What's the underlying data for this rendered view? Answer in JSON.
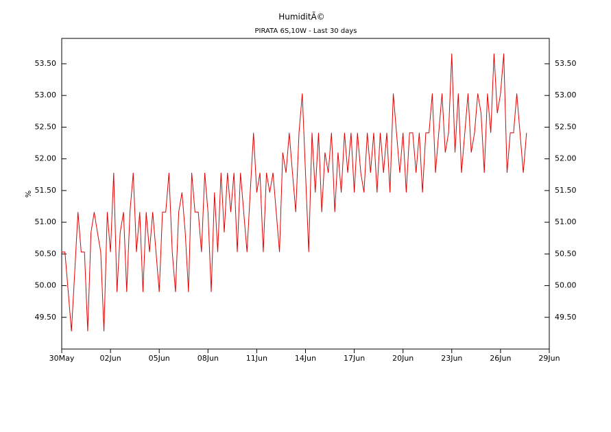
{
  "chart_data": {
    "type": "line",
    "title": "HumiditÃ©",
    "subtitle": "PIRATA 6S,10W - Last 30 days",
    "y_label": "%",
    "xlim": [
      0,
      30
    ],
    "xticks": [
      {
        "value": 0,
        "label": "30May"
      },
      {
        "value": 3,
        "label": "02Jun"
      },
      {
        "value": 6,
        "label": "05Jun"
      },
      {
        "value": 9,
        "label": "08Jun"
      },
      {
        "value": 12,
        "label": "11Jun"
      },
      {
        "value": 15,
        "label": "14Jun"
      },
      {
        "value": 18,
        "label": "17Jun"
      },
      {
        "value": 21,
        "label": "20Jun"
      },
      {
        "value": 24,
        "label": "23Jun"
      },
      {
        "value": 27,
        "label": "26Jun"
      },
      {
        "value": 30,
        "label": "29Jun"
      }
    ],
    "ylim": [
      49.0,
      53.9
    ],
    "yticks": [
      {
        "value": 49.5,
        "label": "49.50"
      },
      {
        "value": 50,
        "label": "50.00"
      },
      {
        "value": 50.5,
        "label": "50.50"
      },
      {
        "value": 51,
        "label": "51.00"
      },
      {
        "value": 51.5,
        "label": "51.50"
      },
      {
        "value": 52,
        "label": "52.00"
      },
      {
        "value": 52.5,
        "label": "52.50"
      },
      {
        "value": 53,
        "label": "53.00"
      },
      {
        "value": 53.5,
        "label": "53.50"
      }
    ],
    "series": [
      {
        "color": "#e00000",
        "x": [
          0,
          0.2,
          0.4,
          0.6,
          0.8,
          1,
          1.2,
          1.4,
          1.6,
          1.8,
          2,
          2.2,
          2.4,
          2.6,
          2.8,
          3,
          3.2,
          3.4,
          3.6,
          3.8,
          4,
          4.2,
          4.4,
          4.6,
          4.8,
          5,
          5.2,
          5.4,
          5.6,
          5.8,
          6,
          6.2,
          6.4,
          6.6,
          6.8,
          7,
          7.2,
          7.4,
          7.6,
          7.8,
          8,
          8.2,
          8.4,
          8.6,
          8.8,
          9,
          9.2,
          9.4,
          9.6,
          9.8,
          10,
          10.2,
          10.4,
          10.6,
          10.8,
          11,
          11.2,
          11.4,
          11.6,
          11.8,
          12,
          12.2,
          12.4,
          12.6,
          12.8,
          13,
          13.2,
          13.4,
          13.6,
          13.8,
          14,
          14.2,
          14.4,
          14.6,
          14.8,
          15,
          15.2,
          15.4,
          15.6,
          15.8,
          16,
          16.2,
          16.4,
          16.6,
          16.8,
          17,
          17.2,
          17.4,
          17.6,
          17.8,
          18,
          18.2,
          18.4,
          18.6,
          18.8,
          19,
          19.2,
          19.4,
          19.6,
          19.8,
          20,
          20.2,
          20.4,
          20.6,
          20.8,
          21,
          21.2,
          21.4,
          21.6,
          21.8,
          22,
          22.2,
          22.4,
          22.6,
          22.8,
          23,
          23.2,
          23.4,
          23.6,
          23.8,
          24,
          24.2,
          24.4,
          24.6,
          24.8,
          25,
          25.2,
          25.4,
          25.6,
          25.8,
          26,
          26.2,
          26.4,
          26.6,
          26.8,
          27,
          27.2,
          27.4,
          27.6,
          27.8,
          28,
          28.2,
          28.4,
          28.6
        ],
        "values": [
          50.53,
          50.53,
          49.9,
          49.28,
          50.22,
          51.16,
          50.53,
          50.53,
          49.28,
          50.84,
          51.16,
          50.84,
          50.53,
          49.28,
          51.16,
          50.53,
          51.78,
          49.9,
          50.84,
          51.16,
          49.9,
          51.16,
          51.78,
          50.53,
          51.16,
          49.9,
          51.16,
          50.53,
          51.16,
          50.53,
          49.9,
          51.16,
          51.16,
          51.78,
          50.53,
          49.9,
          51.16,
          51.47,
          50.84,
          49.9,
          51.78,
          51.16,
          51.16,
          50.53,
          51.78,
          51.16,
          49.9,
          51.47,
          50.53,
          51.78,
          50.84,
          51.78,
          51.16,
          51.78,
          50.53,
          51.78,
          51.16,
          50.53,
          51.47,
          52.41,
          51.47,
          51.78,
          50.53,
          51.78,
          51.47,
          51.78,
          51.16,
          50.53,
          52.1,
          51.78,
          52.41,
          51.78,
          51.16,
          52.41,
          53.03,
          51.78,
          50.53,
          52.41,
          51.47,
          52.41,
          51.16,
          52.1,
          51.78,
          52.41,
          51.16,
          52.1,
          51.47,
          52.41,
          51.78,
          52.41,
          51.47,
          52.41,
          51.78,
          51.47,
          52.41,
          51.78,
          52.41,
          51.47,
          52.41,
          51.78,
          52.41,
          51.47,
          53.03,
          52.41,
          51.78,
          52.41,
          51.47,
          52.41,
          52.41,
          51.78,
          52.41,
          51.47,
          52.41,
          52.41,
          53.03,
          51.78,
          52.41,
          53.03,
          52.1,
          52.41,
          53.66,
          52.1,
          53.03,
          51.78,
          52.41,
          53.03,
          52.1,
          52.41,
          53.03,
          52.72,
          51.78,
          53.03,
          52.41,
          53.66,
          52.72,
          53.03,
          53.66,
          51.78,
          52.41,
          52.41,
          53.03,
          52.41,
          51.78,
          52.41
        ]
      }
    ]
  }
}
